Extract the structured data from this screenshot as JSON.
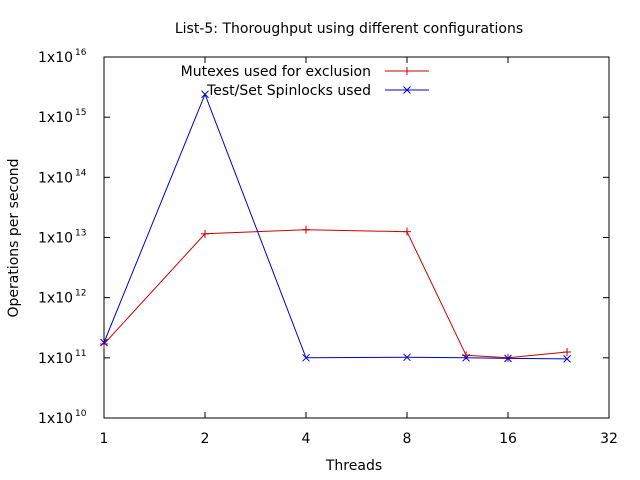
{
  "chart_data": {
    "type": "line",
    "title": "List-5: Thoroughput using different configurations",
    "xlabel": "Threads",
    "ylabel": "Operations per second",
    "x_scale": "log2",
    "y_scale": "log10",
    "xlim": [
      1,
      32
    ],
    "ylim": [
      10000000000.0,
      1e+16
    ],
    "x_ticks": [
      {
        "value": 1,
        "label": "1"
      },
      {
        "value": 2,
        "label": "2"
      },
      {
        "value": 4,
        "label": "4"
      },
      {
        "value": 8,
        "label": "8"
      },
      {
        "value": 16,
        "label": "16"
      },
      {
        "value": 32,
        "label": "32"
      }
    ],
    "y_ticks": [
      {
        "value": 10000000000.0,
        "base": "1x10",
        "exp": "10"
      },
      {
        "value": 100000000000.0,
        "base": "1x10",
        "exp": "11"
      },
      {
        "value": 1000000000000.0,
        "base": "1x10",
        "exp": "12"
      },
      {
        "value": 10000000000000.0,
        "base": "1x10",
        "exp": "13"
      },
      {
        "value": 100000000000000.0,
        "base": "1x10",
        "exp": "14"
      },
      {
        "value": 1000000000000000.0,
        "base": "1x10",
        "exp": "15"
      },
      {
        "value": 1e+16,
        "base": "1x10",
        "exp": "16"
      }
    ],
    "legend_position": "top-right",
    "grid": false,
    "series": [
      {
        "name": "Mutexes used for exclusion",
        "color": "#cc0000",
        "marker": "plus",
        "x": [
          1,
          2,
          4,
          8,
          12,
          16,
          24
        ],
        "y": [
          170000000000.0,
          11500000000000.0,
          13500000000000.0,
          12500000000000.0,
          110000000000.0,
          100000000000.0,
          125000000000.0
        ]
      },
      {
        "name": "Test/Set Spinlocks used",
        "color": "#0000cc",
        "marker": "cross",
        "x": [
          1,
          2,
          4,
          8,
          12,
          16,
          24
        ],
        "y": [
          180000000000.0,
          2400000000000000.0,
          100000000000.0,
          102000000000.0,
          100000000000.0,
          98000000000.0,
          96000000000.0
        ]
      }
    ]
  }
}
